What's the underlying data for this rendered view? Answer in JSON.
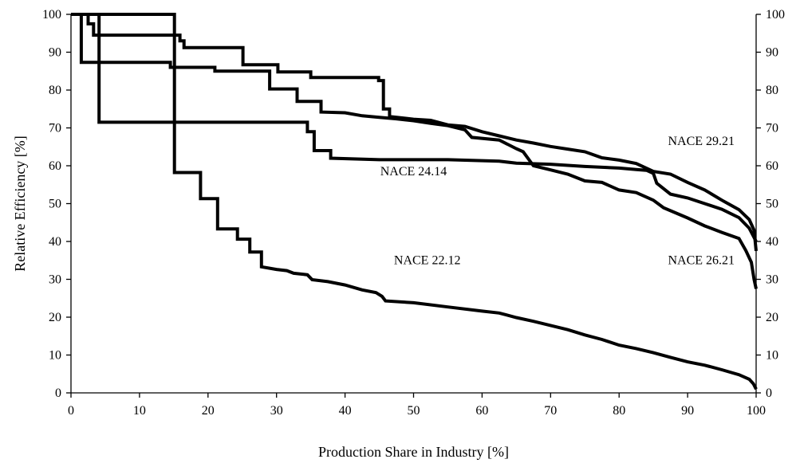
{
  "chart_data": {
    "type": "line",
    "step": true,
    "xlabel": "Production Share in Industry [%]",
    "ylabel": "Relative Efficiency [%]",
    "xlim": [
      0,
      100
    ],
    "ylim": [
      0,
      100
    ],
    "x_ticks": [
      "0",
      "10",
      "20",
      "30",
      "40",
      "50",
      "60",
      "70",
      "80",
      "90",
      "100"
    ],
    "y_ticks": [
      "0",
      "10",
      "20",
      "30",
      "40",
      "50",
      "60",
      "70",
      "80",
      "90",
      "100"
    ],
    "y_ticks_right": [
      "0",
      "10",
      "20",
      "30",
      "40",
      "50",
      "60",
      "70",
      "80",
      "90",
      "100"
    ],
    "grid": false,
    "legend": "none",
    "line_color": "#000000",
    "series": [
      {
        "name": "NACE 22.12",
        "label_at": [
          52,
          34
        ],
        "points": [
          [
            0,
            100
          ],
          [
            15.1,
            100
          ],
          [
            15.1,
            58.2
          ],
          [
            18.9,
            58.2
          ],
          [
            18.9,
            51.3
          ],
          [
            21.4,
            51.3
          ],
          [
            21.4,
            43.3
          ],
          [
            24.3,
            43.3
          ],
          [
            24.3,
            40.6
          ],
          [
            26.1,
            40.6
          ],
          [
            26.1,
            37.2
          ],
          [
            27.8,
            37.2
          ],
          [
            27.8,
            33.3
          ],
          [
            30,
            32.6
          ],
          [
            31.5,
            32.3
          ],
          [
            32.5,
            31.6
          ],
          [
            34.5,
            31.2
          ],
          [
            35.2,
            29.9
          ],
          [
            37.5,
            29.4
          ],
          [
            40,
            28.5
          ],
          [
            42.5,
            27.2
          ],
          [
            44.5,
            26.5
          ],
          [
            45.4,
            25.5
          ],
          [
            45.9,
            24.3
          ],
          [
            50,
            23.8
          ],
          [
            55,
            22.7
          ],
          [
            60,
            21.6
          ],
          [
            62.5,
            21.1
          ],
          [
            65,
            19.9
          ],
          [
            67.5,
            18.9
          ],
          [
            70,
            17.8
          ],
          [
            72.5,
            16.7
          ],
          [
            75,
            15.3
          ],
          [
            77.5,
            14.1
          ],
          [
            80,
            12.6
          ],
          [
            82.5,
            11.7
          ],
          [
            85,
            10.6
          ],
          [
            87.5,
            9.4
          ],
          [
            90,
            8.2
          ],
          [
            92.5,
            7.3
          ],
          [
            95,
            6.1
          ],
          [
            97.5,
            4.8
          ],
          [
            99,
            3.6
          ],
          [
            99.6,
            2.4
          ],
          [
            100,
            1
          ]
        ]
      },
      {
        "name": "NACE 24.14",
        "label_at": [
          50,
          57.5
        ],
        "points": [
          [
            0,
            100
          ],
          [
            4.1,
            100
          ],
          [
            4.1,
            71.5
          ],
          [
            34.5,
            71.5
          ],
          [
            34.5,
            69
          ],
          [
            35.5,
            69
          ],
          [
            35.5,
            64
          ],
          [
            37.9,
            64
          ],
          [
            37.9,
            62
          ],
          [
            45,
            61.6
          ],
          [
            55,
            61.6
          ],
          [
            62.5,
            61.2
          ],
          [
            65,
            60.7
          ],
          [
            70,
            60.4
          ],
          [
            75,
            59.8
          ],
          [
            80,
            59.4
          ],
          [
            82.5,
            59
          ],
          [
            84,
            58.8
          ],
          [
            85,
            58
          ],
          [
            85.5,
            55.4
          ],
          [
            87.5,
            52.5
          ],
          [
            90,
            51.5
          ],
          [
            92.5,
            50
          ],
          [
            95,
            48.5
          ],
          [
            97.5,
            46.3
          ],
          [
            99,
            43.5
          ],
          [
            100,
            40
          ]
        ]
      },
      {
        "name": "NACE 26.21",
        "label_at": [
          92,
          34
        ],
        "points": [
          [
            0,
            100
          ],
          [
            1.5,
            100
          ],
          [
            1.5,
            87.3
          ],
          [
            14.5,
            87.3
          ],
          [
            14.5,
            86
          ],
          [
            21,
            86
          ],
          [
            21,
            85
          ],
          [
            29,
            85
          ],
          [
            29,
            80.3
          ],
          [
            33,
            80.3
          ],
          [
            33,
            77
          ],
          [
            36.5,
            77
          ],
          [
            36.5,
            74.2
          ],
          [
            40,
            74
          ],
          [
            42.5,
            73.2
          ],
          [
            45,
            72.8
          ],
          [
            47.5,
            72.4
          ],
          [
            50,
            71.9
          ],
          [
            52.5,
            71.2
          ],
          [
            55,
            70.6
          ],
          [
            57.5,
            69.5
          ],
          [
            58.5,
            67.5
          ],
          [
            62.5,
            66.8
          ],
          [
            65,
            64.5
          ],
          [
            66,
            63.7
          ],
          [
            67.5,
            60
          ],
          [
            70,
            58.9
          ],
          [
            72.5,
            57.8
          ],
          [
            75,
            56
          ],
          [
            77.5,
            55.6
          ],
          [
            80,
            53.6
          ],
          [
            82.5,
            52.9
          ],
          [
            85,
            50.9
          ],
          [
            86.5,
            48.9
          ],
          [
            90,
            46.2
          ],
          [
            92.5,
            44.1
          ],
          [
            95,
            42.4
          ],
          [
            97.5,
            40.8
          ],
          [
            98.5,
            37.6
          ],
          [
            99.3,
            34.5
          ],
          [
            99.7,
            30
          ],
          [
            100,
            27.5
          ]
        ]
      },
      {
        "name": "NACE 29.21",
        "label_at": [
          92,
          65.5
        ],
        "points": [
          [
            0,
            100
          ],
          [
            2.5,
            100
          ],
          [
            2.5,
            97.5
          ],
          [
            3.3,
            97.5
          ],
          [
            3.3,
            94.5
          ],
          [
            15.9,
            94.5
          ],
          [
            15.9,
            93
          ],
          [
            16.5,
            93
          ],
          [
            16.5,
            91.2
          ],
          [
            25.1,
            91.2
          ],
          [
            25.1,
            86.7
          ],
          [
            30.2,
            86.7
          ],
          [
            30.2,
            84.8
          ],
          [
            35,
            84.8
          ],
          [
            35,
            83.3
          ],
          [
            44.9,
            83.3
          ],
          [
            44.9,
            82.5
          ],
          [
            45.6,
            82.5
          ],
          [
            45.6,
            75
          ],
          [
            46.5,
            75
          ],
          [
            46.5,
            73
          ],
          [
            50,
            72.3
          ],
          [
            52.5,
            72
          ],
          [
            55,
            70.8
          ],
          [
            57.5,
            70.4
          ],
          [
            60,
            69
          ],
          [
            62.5,
            67.9
          ],
          [
            65,
            66.8
          ],
          [
            67.5,
            66
          ],
          [
            70,
            65.1
          ],
          [
            72.5,
            64.4
          ],
          [
            75,
            63.7
          ],
          [
            77.5,
            62.1
          ],
          [
            80,
            61.5
          ],
          [
            82.5,
            60.6
          ],
          [
            85,
            58.5
          ],
          [
            87.5,
            57.8
          ],
          [
            90,
            55.6
          ],
          [
            92.5,
            53.6
          ],
          [
            95,
            50.9
          ],
          [
            97.5,
            48.4
          ],
          [
            99,
            45.8
          ],
          [
            99.7,
            43
          ],
          [
            100,
            37.5
          ]
        ]
      }
    ]
  }
}
